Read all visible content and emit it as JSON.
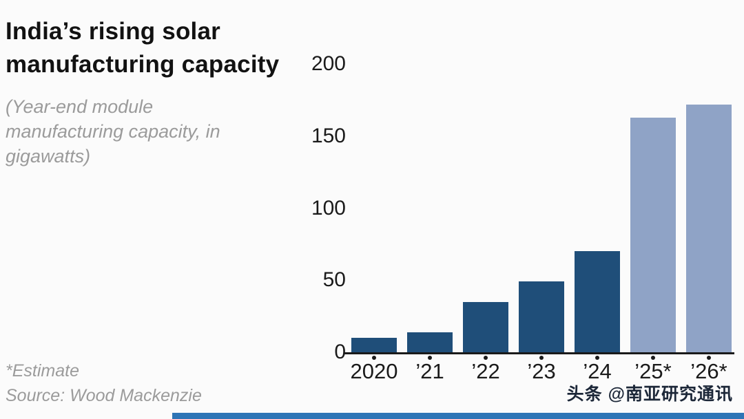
{
  "header": {
    "title": "India’s rising solar manufacturing capacity",
    "subtitle": "(Year-end module manufacturing capacity, in gigawatts)"
  },
  "footer": {
    "estimate_note": "*Estimate",
    "source": "Source: Wood Mackenzie"
  },
  "watermark": {
    "text": "头条 @南亚研究通讯"
  },
  "chart_data": {
    "type": "bar",
    "title": "India’s rising solar manufacturing capacity",
    "subtitle": "(Year-end module manufacturing capacity, in gigawatts)",
    "categories": [
      "2020",
      "’21",
      "’22",
      "’23",
      "’24",
      "’25*",
      "’26*"
    ],
    "values": [
      10,
      14,
      35,
      49,
      70,
      163,
      172
    ],
    "estimated": [
      false,
      false,
      false,
      false,
      false,
      true,
      true
    ],
    "xlabel": "",
    "ylabel": "gigawatts",
    "ylim": [
      0,
      200
    ],
    "yticks": [
      0,
      50,
      100,
      150,
      200
    ],
    "grid": false,
    "legend": "none",
    "colors": {
      "actual": "#1f4e79",
      "estimate": "#8fa3c6"
    },
    "footnote": "*Estimate",
    "source": "Source: Wood Mackenzie"
  }
}
